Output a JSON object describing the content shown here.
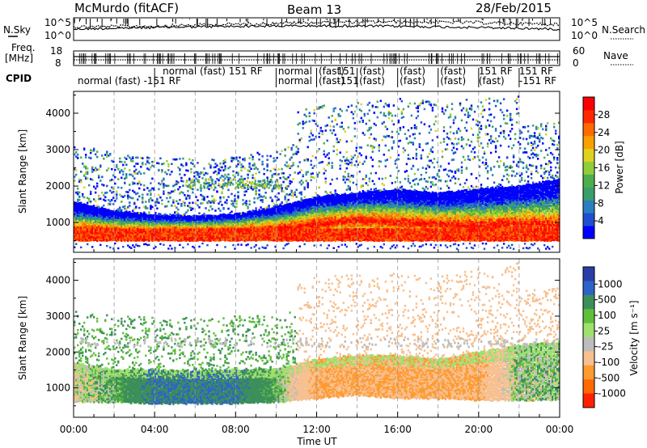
{
  "header": {
    "site": "McMurdo (fitACF)",
    "beam": "Beam 13",
    "date": "28/Feb/2015"
  },
  "top_strip": {
    "left_label": "N.Sky",
    "right_label": "N.Search",
    "left_ticks": [
      "10^5",
      "10^0"
    ],
    "right_ticks": [
      "10^5",
      "10^0"
    ]
  },
  "freq_strip": {
    "left_label_1": "Freq.",
    "left_label_2": "[MHz]",
    "right_label": "Nave",
    "left_ticks": [
      "18",
      "8"
    ],
    "right_ticks": [
      "60",
      "0"
    ]
  },
  "cpid": {
    "label": "CPID",
    "entries": [
      {
        "t": 0.2,
        "row": 0,
        "text": "normal (fast) -151 RF"
      },
      {
        "t": 4.4,
        "row": -1,
        "text": "normal (fast) 151 RF"
      },
      {
        "t": 10.1,
        "row": -1,
        "text": "normal"
      },
      {
        "t": 10.1,
        "row": 0,
        "text": "normal"
      },
      {
        "t": 12.1,
        "row": -1,
        "text": "(fast)"
      },
      {
        "t": 12.1,
        "row": 0,
        "text": "(fast)"
      },
      {
        "t": 13.0,
        "row": -1,
        "text": "151"
      },
      {
        "t": 13.0,
        "row": 0,
        "text": "-151"
      },
      {
        "t": 14.1,
        "row": -1,
        "text": "(fast)"
      },
      {
        "t": 14.1,
        "row": 0,
        "text": "(fast)"
      },
      {
        "t": 16.1,
        "row": -1,
        "text": "(fast)"
      },
      {
        "t": 16.1,
        "row": 0,
        "text": "(fast)"
      },
      {
        "t": 18.1,
        "row": -1,
        "text": "(fast)"
      },
      {
        "t": 18.1,
        "row": 0,
        "text": "(fast)"
      },
      {
        "t": 20.0,
        "row": -1,
        "text": "151 RF"
      },
      {
        "t": 20.0,
        "row": 0,
        "text": "(fast)"
      },
      {
        "t": 22.0,
        "row": -1,
        "text": "151 RF"
      },
      {
        "t": 22.0,
        "row": 0,
        "text": "-151 RF"
      }
    ]
  },
  "chart_data": [
    {
      "type": "heatmap",
      "panel": "power",
      "ylabel": "Slant Range [km]",
      "xlim": [
        0,
        24
      ],
      "ylim": [
        180,
        4600
      ],
      "yticks": [
        "1000",
        "2000",
        "3000",
        "4000"
      ],
      "colorbar": {
        "label": "Power [dB]",
        "ticks": [
          "4",
          "8",
          "12",
          "16",
          "20",
          "24",
          "28"
        ],
        "range": [
          0,
          32
        ],
        "colors": [
          "#0000ff",
          "#1f4fd0",
          "#2a7fbf",
          "#3a9e6a",
          "#4cae4c",
          "#8fce3a",
          "#e0d020",
          "#f7a000",
          "#ff6a00",
          "#ff2800",
          "#ff0000"
        ]
      },
      "main_echo": [
        {
          "t": 0.0,
          "lo": 650,
          "hi": 1550,
          "core": 800
        },
        {
          "t": 2.0,
          "lo": 620,
          "hi": 1300,
          "core": 780
        },
        {
          "t": 4.0,
          "lo": 580,
          "hi": 1180,
          "core": 760
        },
        {
          "t": 6.0,
          "lo": 560,
          "hi": 1150,
          "core": 760
        },
        {
          "t": 8.0,
          "lo": 560,
          "hi": 1200,
          "core": 780
        },
        {
          "t": 10.0,
          "lo": 580,
          "hi": 1400,
          "core": 820
        },
        {
          "t": 12.0,
          "lo": 700,
          "hi": 1700,
          "core": 950
        },
        {
          "t": 14.0,
          "lo": 800,
          "hi": 1800,
          "core": 1050
        },
        {
          "t": 16.0,
          "lo": 750,
          "hi": 1900,
          "core": 1000
        },
        {
          "t": 18.0,
          "lo": 700,
          "hi": 1800,
          "core": 950
        },
        {
          "t": 20.0,
          "lo": 650,
          "hi": 1900,
          "core": 900
        },
        {
          "t": 22.0,
          "lo": 700,
          "hi": 2000,
          "core": 950
        },
        {
          "t": 24.0,
          "lo": 650,
          "hi": 2200,
          "core": 900
        }
      ]
    },
    {
      "type": "heatmap",
      "panel": "velocity",
      "xlabel": "Time UT",
      "ylabel": "Slant Range [km]",
      "xlim": [
        0,
        24
      ],
      "ylim": [
        180,
        4600
      ],
      "xticks": [
        "00:00",
        "04:00",
        "08:00",
        "12:00",
        "16:00",
        "20:00",
        "00:00"
      ],
      "yticks": [
        "1000",
        "2000",
        "3000",
        "4000"
      ],
      "colorbar": {
        "label": "Velocity [m s⁻¹]",
        "ticks": [
          "1000",
          "500",
          "100",
          "25",
          "-25",
          "-100",
          "-500",
          "-1000"
        ],
        "colors": [
          "#2a3ea8",
          "#2e63c8",
          "#3d8f5a",
          "#5fbf3a",
          "#9fe070",
          "#bdbdbd",
          "#f7c090",
          "#ff9a30",
          "#ff6a00",
          "#ff2000"
        ]
      },
      "main_echo": [
        {
          "t": 0.0,
          "lo": 600,
          "hi": 1700,
          "v": -100
        },
        {
          "t": 2.0,
          "lo": 600,
          "hi": 1500,
          "v": 100
        },
        {
          "t": 4.0,
          "lo": 560,
          "hi": 1500,
          "v": 500
        },
        {
          "t": 6.0,
          "lo": 560,
          "hi": 1450,
          "v": 500
        },
        {
          "t": 8.0,
          "lo": 560,
          "hi": 1500,
          "v": 500
        },
        {
          "t": 10.0,
          "lo": 600,
          "hi": 1500,
          "v": 100
        },
        {
          "t": 12.0,
          "lo": 700,
          "hi": 1800,
          "v": -500
        },
        {
          "t": 14.0,
          "lo": 800,
          "hi": 1900,
          "v": -500
        },
        {
          "t": 16.0,
          "lo": 700,
          "hi": 1900,
          "v": -500
        },
        {
          "t": 18.0,
          "lo": 700,
          "hi": 1800,
          "v": -500
        },
        {
          "t": 20.0,
          "lo": 650,
          "hi": 2000,
          "v": -500
        },
        {
          "t": 22.0,
          "lo": 650,
          "hi": 2200,
          "v": 25
        },
        {
          "t": 24.0,
          "lo": 650,
          "hi": 2300,
          "v": 25
        }
      ]
    }
  ],
  "colors": {
    "frame": "#000000",
    "dash": "#999999",
    "background": "#ffffff"
  }
}
